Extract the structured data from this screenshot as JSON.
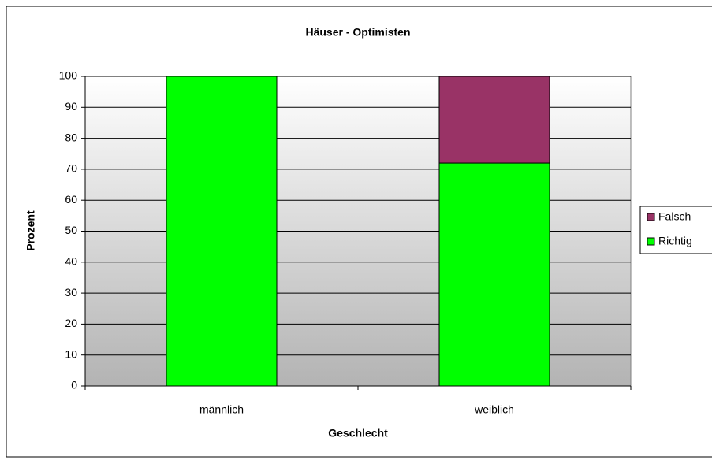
{
  "chart_data": {
    "type": "stacked_bar",
    "title": "Häuser - Optimisten",
    "x_label": "Geschlecht",
    "y_label": "Prozent",
    "categories": [
      "männlich",
      "weiblich"
    ],
    "series": [
      {
        "name": "Richtig",
        "color": "#00ff00",
        "values": [
          100,
          72
        ]
      },
      {
        "name": "Falsch",
        "color": "#993366",
        "values": [
          0,
          28
        ]
      }
    ],
    "ylim": [
      0,
      100
    ],
    "yticks": [
      0,
      10,
      20,
      30,
      40,
      50,
      60,
      70,
      80,
      90,
      100
    ],
    "grid": true,
    "legend": "right"
  }
}
